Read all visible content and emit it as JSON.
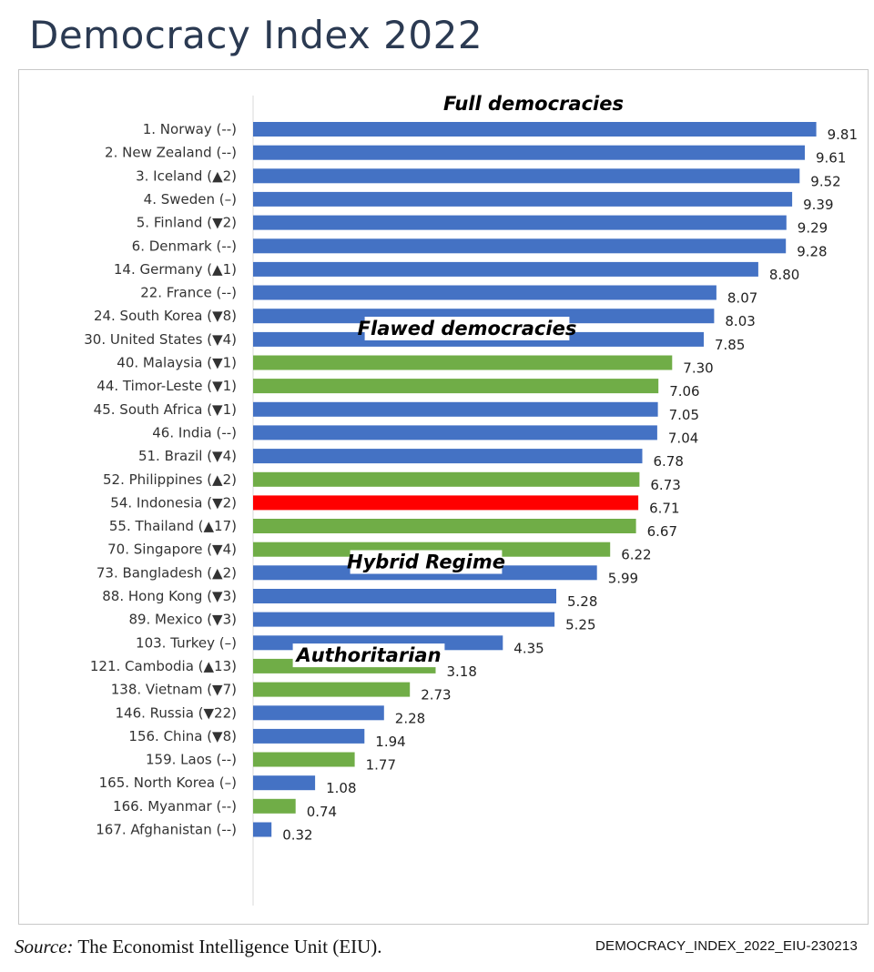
{
  "title": "Democracy Index 2022",
  "footer": {
    "source_label": "Source:",
    "source_text": " The Economist Intelligence Unit (EIU).",
    "doc_id": "DEMOCRACY_INDEX_2022_EIU-230213"
  },
  "colors": {
    "blue": "#4472c4",
    "green": "#70ad47",
    "red": "#ff0000",
    "axis": "#d9d9d9"
  },
  "chart_data": {
    "type": "bar",
    "orientation": "horizontal",
    "title": "Democracy Index 2022",
    "xlim": [
      0,
      10
    ],
    "groups": [
      {
        "name": "Full democracies",
        "items": [
          {
            "label": "1. Norway (--)",
            "value": 9.81,
            "color": "blue"
          },
          {
            "label": "2. New Zealand (--)",
            "value": 9.61,
            "color": "blue"
          },
          {
            "label": "3. Iceland (▲2)",
            "value": 9.52,
            "color": "blue"
          },
          {
            "label": "4. Sweden (–)",
            "value": 9.39,
            "color": "blue"
          },
          {
            "label": "5. Finland (▼2)",
            "value": 9.29,
            "color": "blue"
          },
          {
            "label": "6. Denmark (--)",
            "value": 9.28,
            "color": "blue"
          },
          {
            "label": "14. Germany (▲1)",
            "value": 8.8,
            "color": "blue"
          },
          {
            "label": "22. France (--)",
            "value": 8.07,
            "color": "blue"
          },
          {
            "label": "24. South Korea (▼8)",
            "value": 8.03,
            "color": "blue"
          }
        ]
      },
      {
        "name": "Flawed democracies",
        "items": [
          {
            "label": "30. United States (▼4)",
            "value": 7.85,
            "color": "blue"
          },
          {
            "label": "40. Malaysia (▼1)",
            "value": 7.3,
            "color": "green"
          },
          {
            "label": "44. Timor-Leste (▼1)",
            "value": 7.06,
            "color": "green"
          },
          {
            "label": "45. South Africa (▼1)",
            "value": 7.05,
            "color": "blue"
          },
          {
            "label": "46. India (--)",
            "value": 7.04,
            "color": "blue"
          },
          {
            "label": "51. Brazil (▼4)",
            "value": 6.78,
            "color": "blue"
          },
          {
            "label": "52. Philippines  (▲2)",
            "value": 6.73,
            "color": "green"
          },
          {
            "label": "54. Indonesia (▼2)",
            "value": 6.71,
            "color": "red"
          },
          {
            "label": "55. Thailand  (▲17)",
            "value": 6.67,
            "color": "green"
          },
          {
            "label": "70. Singapore (▼4)",
            "value": 6.22,
            "color": "green"
          }
        ]
      },
      {
        "name": "Hybrid Regime",
        "items": [
          {
            "label": "73. Bangladesh  (▲2)",
            "value": 5.99,
            "color": "blue"
          },
          {
            "label": "88. Hong Kong (▼3)",
            "value": 5.28,
            "color": "blue"
          },
          {
            "label": "89. Mexico (▼3)",
            "value": 5.25,
            "color": "blue"
          },
          {
            "label": "103. Turkey (–)",
            "value": 4.35,
            "color": "blue"
          }
        ]
      },
      {
        "name": "Authoritarian",
        "items": [
          {
            "label": "121. Cambodia (▲13)",
            "value": 3.18,
            "color": "green"
          },
          {
            "label": "138. Vietnam (▼7)",
            "value": 2.73,
            "color": "green"
          },
          {
            "label": "146. Russia (▼22)",
            "value": 2.28,
            "color": "blue"
          },
          {
            "label": "156. China (▼8)",
            "value": 1.94,
            "color": "blue"
          },
          {
            "label": "159. Laos (--)",
            "value": 1.77,
            "color": "green"
          },
          {
            "label": "165. North Korea (–)",
            "value": 1.08,
            "color": "blue"
          },
          {
            "label": "166. Myanmar (--)",
            "value": 0.74,
            "color": "green"
          },
          {
            "label": "167. Afghanistan (--)",
            "value": 0.32,
            "color": "blue"
          }
        ]
      }
    ]
  }
}
